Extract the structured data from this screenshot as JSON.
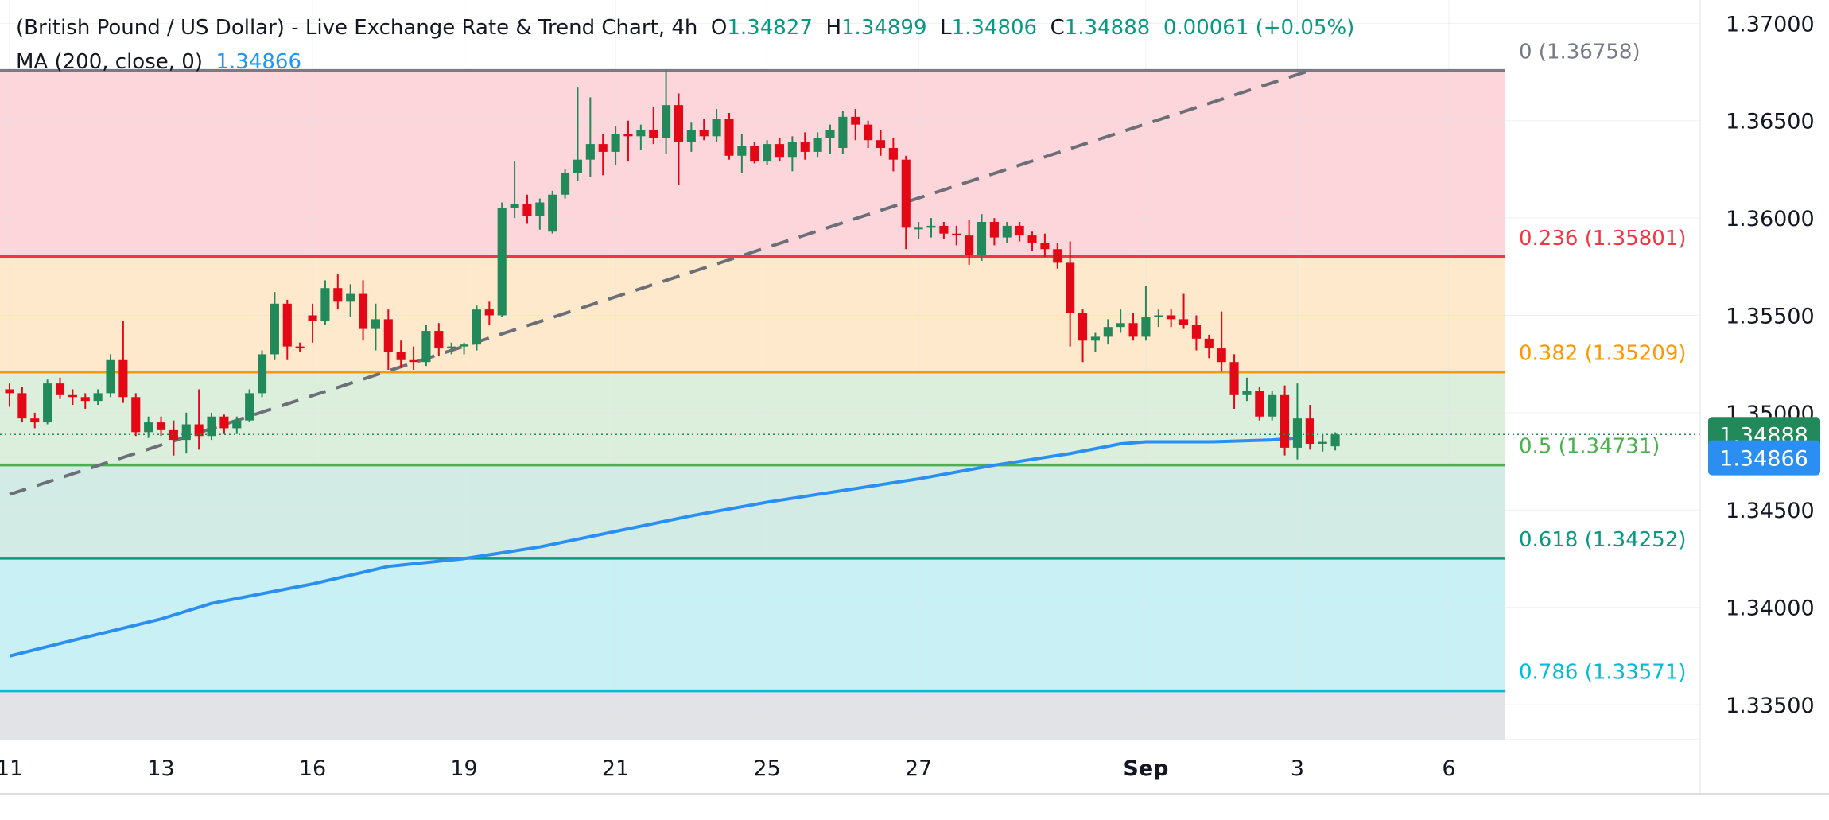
{
  "header": {
    "title": "(British Pound / US Dollar) - Live Exchange Rate & Trend Chart, 4h",
    "o_label": "O",
    "o_value": "1.34827",
    "h_label": "H",
    "h_value": "1.34899",
    "l_label": "L",
    "l_value": "1.34806",
    "c_label": "C",
    "c_value": "1.34888",
    "change": "0.00061 (+0.05%)",
    "ma_label": "MA (200, close, 0)",
    "ma_value": "1.34866"
  },
  "colors": {
    "up": "#22895a",
    "down": "#e40716",
    "ma": "#2a8ff0",
    "trend": "#6d6f78",
    "fib0": "#787b86",
    "fib236": "#f23645",
    "fib382": "#ff9800",
    "fib5": "#4caf50",
    "fib618": "#089981",
    "fib786": "#00bcd4",
    "zone0": "#fcd6da",
    "zone1": "#ffe9cc",
    "zone2": "#dcefdc",
    "zone3": "#d2ece5",
    "zone4": "#c9f1f5",
    "zone5": "#e2e3e7"
  },
  "chart_data": {
    "type": "candlestick",
    "title": "(British Pound / US Dollar) - Live Exchange Rate & Trend Chart, 4h",
    "y_axis": {
      "ticks": [
        1.37,
        1.365,
        1.36,
        1.355,
        1.35,
        1.345,
        1.34,
        1.335
      ],
      "tick_labels": [
        "1.37000",
        "1.36500",
        "1.36000",
        "1.35500",
        "1.35000",
        "1.34500",
        "1.34000",
        "1.33500"
      ],
      "range": [
        1.3332,
        1.3712
      ]
    },
    "x_axis": {
      "tick_labels": [
        "11",
        "13",
        "16",
        "19",
        "21",
        "25",
        "27",
        "Sep",
        "3",
        "6"
      ],
      "tick_positions": [
        0,
        12,
        24,
        36,
        48,
        60,
        72,
        90,
        102,
        114
      ],
      "range": [
        0,
        130
      ],
      "bold": [
        "Sep"
      ]
    },
    "fib_levels": [
      {
        "ratio": "0",
        "price": 1.36758,
        "label": "0 (1.36758)"
      },
      {
        "ratio": "0.236",
        "price": 1.35801,
        "label": "0.236 (1.35801)"
      },
      {
        "ratio": "0.382",
        "price": 1.35209,
        "label": "0.382 (1.35209)"
      },
      {
        "ratio": "0.5",
        "price": 1.34731,
        "label": "0.5 (1.34731)"
      },
      {
        "ratio": "0.618",
        "price": 1.34252,
        "label": "0.618 (1.34252)"
      },
      {
        "ratio": "0.786",
        "price": 1.33571,
        "label": "0.786 (1.33571)"
      }
    ],
    "trendline": {
      "from": [
        0,
        1.3458
      ],
      "to": [
        103,
        1.36758
      ]
    },
    "last_price": {
      "value": 1.34888,
      "label": "1.34888"
    },
    "ma_price": {
      "value": 1.34866,
      "label": "1.34866"
    },
    "ma_series": [
      [
        0,
        1.3375
      ],
      [
        5,
        1.3383
      ],
      [
        12,
        1.3394
      ],
      [
        16,
        1.3402
      ],
      [
        24,
        1.3412
      ],
      [
        30,
        1.3421
      ],
      [
        36,
        1.3425
      ],
      [
        42,
        1.3431
      ],
      [
        48,
        1.3439
      ],
      [
        54,
        1.3447
      ],
      [
        60,
        1.3454
      ],
      [
        66,
        1.346
      ],
      [
        72,
        1.3466
      ],
      [
        78,
        1.3473
      ],
      [
        84,
        1.3479
      ],
      [
        88,
        1.3484
      ],
      [
        90,
        1.3485
      ],
      [
        95,
        1.3485
      ],
      [
        100,
        1.3486
      ],
      [
        102,
        1.3487
      ]
    ],
    "candles": [
      [
        1.3512,
        1.3515,
        1.3503,
        1.351
      ],
      [
        1.351,
        1.3513,
        1.3495,
        1.3497
      ],
      [
        1.3497,
        1.35,
        1.3492,
        1.3495
      ],
      [
        1.3495,
        1.3517,
        1.3494,
        1.3515
      ],
      [
        1.3515,
        1.3518,
        1.3507,
        1.3509
      ],
      [
        1.3509,
        1.3512,
        1.3504,
        1.3508
      ],
      [
        1.3508,
        1.351,
        1.3502,
        1.3506
      ],
      [
        1.3506,
        1.3512,
        1.3504,
        1.351
      ],
      [
        1.351,
        1.353,
        1.3508,
        1.3527
      ],
      [
        1.3527,
        1.3547,
        1.3505,
        1.3508
      ],
      [
        1.3508,
        1.351,
        1.3488,
        1.349
      ],
      [
        1.349,
        1.3498,
        1.3487,
        1.3495
      ],
      [
        1.3495,
        1.3498,
        1.3488,
        1.3491
      ],
      [
        1.3491,
        1.3496,
        1.3478,
        1.3486
      ],
      [
        1.3486,
        1.35,
        1.3479,
        1.3494
      ],
      [
        1.3494,
        1.3512,
        1.3481,
        1.3488
      ],
      [
        1.3488,
        1.35,
        1.3486,
        1.3498
      ],
      [
        1.3498,
        1.3499,
        1.3489,
        1.3492
      ],
      [
        1.3492,
        1.3498,
        1.3489,
        1.3496
      ],
      [
        1.3496,
        1.3512,
        1.3495,
        1.351
      ],
      [
        1.351,
        1.3532,
        1.3508,
        1.353
      ],
      [
        1.353,
        1.3562,
        1.3527,
        1.3556
      ],
      [
        1.3556,
        1.3558,
        1.3527,
        1.3534
      ],
      [
        1.3534,
        1.3536,
        1.3531,
        1.3533
      ],
      [
        1.355,
        1.3556,
        1.3536,
        1.3547
      ],
      [
        1.3547,
        1.3568,
        1.3545,
        1.3564
      ],
      [
        1.3564,
        1.3571,
        1.3553,
        1.3557
      ],
      [
        1.3557,
        1.3566,
        1.3549,
        1.3561
      ],
      [
        1.3561,
        1.3568,
        1.3537,
        1.3543
      ],
      [
        1.3543,
        1.3556,
        1.3532,
        1.3548
      ],
      [
        1.3548,
        1.3553,
        1.3522,
        1.3531
      ],
      [
        1.3531,
        1.3537,
        1.3523,
        1.3527
      ],
      [
        1.3527,
        1.3534,
        1.3522,
        1.3526
      ],
      [
        1.3526,
        1.3545,
        1.3524,
        1.3542
      ],
      [
        1.3542,
        1.3546,
        1.3529,
        1.3533
      ],
      [
        1.3533,
        1.3536,
        1.353,
        1.3534
      ],
      [
        1.3534,
        1.3536,
        1.353,
        1.3535
      ],
      [
        1.3535,
        1.3555,
        1.3532,
        1.3553
      ],
      [
        1.3553,
        1.3557,
        1.3545,
        1.355
      ],
      [
        1.355,
        1.3608,
        1.3549,
        1.3605
      ],
      [
        1.3605,
        1.3629,
        1.36,
        1.3607
      ],
      [
        1.3607,
        1.3612,
        1.3597,
        1.3601
      ],
      [
        1.3601,
        1.361,
        1.3594,
        1.3608
      ],
      [
        1.3593,
        1.3614,
        1.3592,
        1.3612
      ],
      [
        1.3612,
        1.3625,
        1.361,
        1.3623
      ],
      [
        1.3623,
        1.3667,
        1.3619,
        1.363
      ],
      [
        1.363,
        1.3662,
        1.3621,
        1.3638
      ],
      [
        1.3638,
        1.3643,
        1.3622,
        1.3634
      ],
      [
        1.3634,
        1.3647,
        1.3627,
        1.3643
      ],
      [
        1.3643,
        1.365,
        1.3629,
        1.3642
      ],
      [
        1.3642,
        1.3648,
        1.3635,
        1.3645
      ],
      [
        1.3645,
        1.3657,
        1.3638,
        1.3641
      ],
      [
        1.3641,
        1.3676,
        1.3633,
        1.3658
      ],
      [
        1.3658,
        1.3664,
        1.3617,
        1.3639
      ],
      [
        1.3639,
        1.3649,
        1.3634,
        1.3645
      ],
      [
        1.3645,
        1.3651,
        1.364,
        1.3642
      ],
      [
        1.3642,
        1.3656,
        1.3639,
        1.3651
      ],
      [
        1.3651,
        1.3654,
        1.363,
        1.3632
      ],
      [
        1.3632,
        1.3643,
        1.3623,
        1.3637
      ],
      [
        1.3637,
        1.3639,
        1.3628,
        1.3629
      ],
      [
        1.3629,
        1.364,
        1.3627,
        1.3638
      ],
      [
        1.3638,
        1.3641,
        1.3629,
        1.3631
      ],
      [
        1.3631,
        1.3642,
        1.3624,
        1.3639
      ],
      [
        1.3639,
        1.3644,
        1.363,
        1.3634
      ],
      [
        1.3634,
        1.3644,
        1.3631,
        1.3641
      ],
      [
        1.3641,
        1.3648,
        1.3633,
        1.3645
      ],
      [
        1.3636,
        1.3655,
        1.3633,
        1.3652
      ],
      [
        1.3652,
        1.3656,
        1.364,
        1.3648
      ],
      [
        1.3648,
        1.365,
        1.3636,
        1.364
      ],
      [
        1.364,
        1.3645,
        1.3632,
        1.3636
      ],
      [
        1.3636,
        1.3641,
        1.3624,
        1.363
      ],
      [
        1.363,
        1.3632,
        1.3584,
        1.3595
      ],
      [
        1.3595,
        1.3598,
        1.3589,
        1.3595
      ],
      [
        1.3595,
        1.36,
        1.359,
        1.3596
      ],
      [
        1.3596,
        1.3598,
        1.3589,
        1.3592
      ],
      [
        1.3592,
        1.3596,
        1.3586,
        1.3591
      ],
      [
        1.3591,
        1.3599,
        1.3576,
        1.3581
      ],
      [
        1.3581,
        1.3602,
        1.3578,
        1.3598
      ],
      [
        1.3598,
        1.36,
        1.3586,
        1.359
      ],
      [
        1.359,
        1.3598,
        1.3587,
        1.3596
      ],
      [
        1.3596,
        1.3598,
        1.3588,
        1.3591
      ],
      [
        1.3591,
        1.3593,
        1.3583,
        1.3587
      ],
      [
        1.3587,
        1.3592,
        1.358,
        1.3584
      ],
      [
        1.3584,
        1.3587,
        1.3574,
        1.3577
      ],
      [
        1.3577,
        1.3588,
        1.3534,
        1.3551
      ],
      [
        1.3551,
        1.3553,
        1.3526,
        1.3537
      ],
      [
        1.3537,
        1.3541,
        1.3531,
        1.3539
      ],
      [
        1.3539,
        1.3548,
        1.3535,
        1.3544
      ],
      [
        1.3544,
        1.3553,
        1.3541,
        1.3546
      ],
      [
        1.3546,
        1.3551,
        1.3537,
        1.3539
      ],
      [
        1.3539,
        1.3565,
        1.3537,
        1.3549
      ],
      [
        1.3549,
        1.3553,
        1.3544,
        1.355
      ],
      [
        1.355,
        1.3553,
        1.3544,
        1.3548
      ],
      [
        1.3548,
        1.3561,
        1.3543,
        1.3545
      ],
      [
        1.3545,
        1.355,
        1.3532,
        1.3538
      ],
      [
        1.3538,
        1.354,
        1.3528,
        1.3533
      ],
      [
        1.3533,
        1.3552,
        1.3521,
        1.3526
      ],
      [
        1.3526,
        1.353,
        1.3502,
        1.3509
      ],
      [
        1.3509,
        1.3518,
        1.3506,
        1.3511
      ],
      [
        1.3511,
        1.3513,
        1.3496,
        1.3498
      ],
      [
        1.3498,
        1.3511,
        1.3496,
        1.3509
      ],
      [
        1.3509,
        1.3514,
        1.3478,
        1.3482
      ],
      [
        1.3482,
        1.3515,
        1.3476,
        1.3497
      ],
      [
        1.3497,
        1.3504,
        1.3481,
        1.3484
      ],
      [
        1.3484,
        1.3489,
        1.348,
        1.3485
      ],
      [
        1.34827,
        1.34899,
        1.34806,
        1.34888
      ]
    ]
  }
}
